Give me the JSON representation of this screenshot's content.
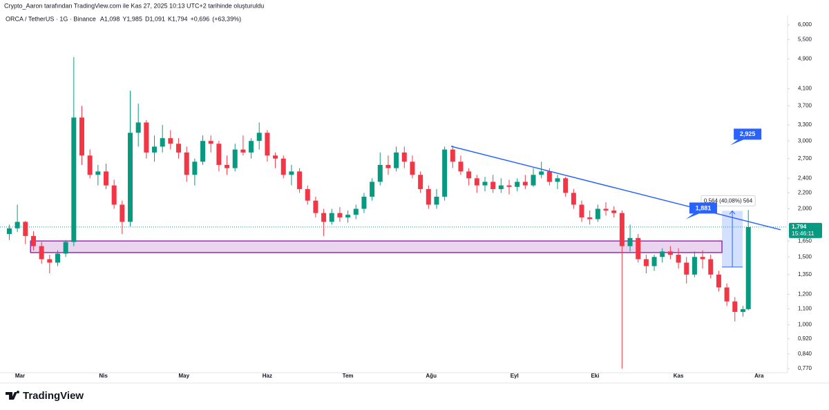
{
  "header": {
    "credit": "Crypto_Aaron tarafından TradingView.com ile Kas 27, 2025 10:13 UTC+2 tarihinde oluşturuldu"
  },
  "chart_data": {
    "type": "candlestick",
    "title": "ORCA / TetherUS · 1G · Binance",
    "legend_values": [
      {
        "value": 1.098,
        "label": "A1,098"
      },
      {
        "value": 1.985,
        "label": "Y1,985"
      },
      {
        "value": 1.091,
        "label": "D1,091"
      },
      {
        "value": 1.794,
        "label": "K1,794"
      },
      {
        "value": 0.696,
        "label": "+0,696"
      },
      {
        "value": 63.39,
        "label": "(+63,39%)"
      }
    ],
    "x": [
      -4,
      -1,
      2,
      5,
      8,
      11,
      14,
      17,
      20,
      23,
      26,
      29,
      32,
      35,
      38,
      41,
      44,
      47,
      50,
      53,
      56,
      59,
      62,
      65,
      68,
      71,
      74,
      77,
      80,
      83,
      86,
      89,
      92,
      95,
      98,
      101,
      104,
      107,
      110,
      113,
      116,
      119,
      122,
      125,
      128,
      131,
      134,
      137,
      140,
      143,
      146,
      149,
      152,
      155,
      158,
      161,
      164,
      167,
      170,
      173,
      176,
      179,
      182,
      185,
      188,
      191,
      194,
      197,
      200,
      203,
      206,
      209,
      212,
      215,
      218,
      221,
      224,
      227,
      230,
      233,
      236,
      239,
      242,
      245,
      248,
      251,
      254,
      257,
      260,
      263,
      266,
      269,
      271
    ],
    "open": [
      1.72,
      1.78,
      1.85,
      1.7,
      1.6,
      1.48,
      1.45,
      1.53,
      1.64,
      3.45,
      2.75,
      2.45,
      2.5,
      2.3,
      2.05,
      1.85,
      3.15,
      3.35,
      2.8,
      2.9,
      3.05,
      2.95,
      2.8,
      2.45,
      2.65,
      3.0,
      2.95,
      2.6,
      2.55,
      2.85,
      2.8,
      3.0,
      3.15,
      2.75,
      2.7,
      2.45,
      2.5,
      2.25,
      2.1,
      1.95,
      1.85,
      1.95,
      1.9,
      1.93,
      2.0,
      2.15,
      2.35,
      2.6,
      2.55,
      2.8,
      2.65,
      2.45,
      2.25,
      2.05,
      2.15,
      2.85,
      2.65,
      2.5,
      2.4,
      2.3,
      2.35,
      2.25,
      2.3,
      2.28,
      2.35,
      2.3,
      2.45,
      2.5,
      2.35,
      2.4,
      2.2,
      2.05,
      1.9,
      1.88,
      2.0,
      1.98,
      1.95,
      1.6,
      1.68,
      1.48,
      1.42,
      1.5,
      1.55,
      1.52,
      1.45,
      1.35,
      1.5,
      1.48,
      1.35,
      1.25,
      1.15,
      1.08,
      1.098
    ],
    "high": [
      1.82,
      2.05,
      1.86,
      1.75,
      1.64,
      1.52,
      1.56,
      1.66,
      4.95,
      3.7,
      2.85,
      2.6,
      2.62,
      2.38,
      2.1,
      4.05,
      3.75,
      3.4,
      3.1,
      3.3,
      3.2,
      3.05,
      2.9,
      2.7,
      3.1,
      3.1,
      3.0,
      2.75,
      2.95,
      3.1,
      3.05,
      3.35,
      3.2,
      2.8,
      2.75,
      2.6,
      2.55,
      2.3,
      2.15,
      2.0,
      2.0,
      2.02,
      1.98,
      2.05,
      2.2,
      2.4,
      2.8,
      2.75,
      2.9,
      2.9,
      2.75,
      2.5,
      2.3,
      2.25,
      2.9,
      2.92,
      2.75,
      2.55,
      2.45,
      2.42,
      2.45,
      2.4,
      2.38,
      2.4,
      2.45,
      2.55,
      2.65,
      2.55,
      2.45,
      2.42,
      2.25,
      2.1,
      1.98,
      2.05,
      2.08,
      2.03,
      1.98,
      1.82,
      1.72,
      1.52,
      1.52,
      1.58,
      1.6,
      1.58,
      1.5,
      1.55,
      1.56,
      1.52,
      1.38,
      1.28,
      1.18,
      1.12,
      1.985
    ],
    "low": [
      1.66,
      1.74,
      1.62,
      1.56,
      1.44,
      1.36,
      1.42,
      1.5,
      1.6,
      2.6,
      2.4,
      2.3,
      2.25,
      2.0,
      1.72,
      1.8,
      2.9,
      2.7,
      2.65,
      2.8,
      2.85,
      2.7,
      2.35,
      2.3,
      2.6,
      2.8,
      2.5,
      2.45,
      2.5,
      2.75,
      2.7,
      2.85,
      2.65,
      2.55,
      2.4,
      2.3,
      2.2,
      2.05,
      1.9,
      1.7,
      1.82,
      1.85,
      1.84,
      1.88,
      1.95,
      2.1,
      2.3,
      2.45,
      2.5,
      2.55,
      2.4,
      2.2,
      2.0,
      2.0,
      2.1,
      2.55,
      2.45,
      2.3,
      2.2,
      2.22,
      2.2,
      2.2,
      2.18,
      2.22,
      2.25,
      2.28,
      2.4,
      2.3,
      2.25,
      2.15,
      2.0,
      1.85,
      1.82,
      1.85,
      1.92,
      1.9,
      0.77,
      1.55,
      1.45,
      1.36,
      1.38,
      1.45,
      1.48,
      1.4,
      1.28,
      1.33,
      1.4,
      1.32,
      1.22,
      1.12,
      1.02,
      1.05,
      1.091
    ],
    "close": [
      1.78,
      1.85,
      1.7,
      1.6,
      1.48,
      1.45,
      1.53,
      1.64,
      3.45,
      2.75,
      2.45,
      2.5,
      2.3,
      2.05,
      1.85,
      3.15,
      3.35,
      2.8,
      2.9,
      3.05,
      2.95,
      2.8,
      2.45,
      2.65,
      3.0,
      2.95,
      2.6,
      2.55,
      2.85,
      2.8,
      3.0,
      3.15,
      2.75,
      2.7,
      2.45,
      2.5,
      2.25,
      2.1,
      1.95,
      1.85,
      1.95,
      1.9,
      1.93,
      2.0,
      2.15,
      2.35,
      2.6,
      2.55,
      2.8,
      2.65,
      2.45,
      2.25,
      2.05,
      2.15,
      2.85,
      2.65,
      2.5,
      2.4,
      2.3,
      2.35,
      2.25,
      2.3,
      2.28,
      2.35,
      2.3,
      2.45,
      2.5,
      2.35,
      2.4,
      2.2,
      2.05,
      1.9,
      1.88,
      2.0,
      1.98,
      1.95,
      1.6,
      1.68,
      1.48,
      1.42,
      1.5,
      1.55,
      1.52,
      1.45,
      1.35,
      1.5,
      1.48,
      1.35,
      1.25,
      1.15,
      1.08,
      1.098,
      1.794
    ],
    "up_color": "#089981",
    "down_color": "#f23645",
    "log_scale": true,
    "grid": false,
    "xlim": [
      -7.46,
      285.6
    ],
    "ylim": [
      0.751,
      6.36
    ],
    "xticks": [
      {
        "value": 0,
        "label": "Mar"
      },
      {
        "value": 31,
        "label": "Nis"
      },
      {
        "value": 61,
        "label": "May"
      },
      {
        "value": 92,
        "label": "Haz"
      },
      {
        "value": 122,
        "label": "Tem"
      },
      {
        "value": 153,
        "label": "Ağu"
      },
      {
        "value": 184,
        "label": "Eyl"
      },
      {
        "value": 214,
        "label": "Eki"
      },
      {
        "value": 245,
        "label": "Kas"
      },
      {
        "value": 275,
        "label": "Ara"
      }
    ],
    "yticks": [
      {
        "value": 6,
        "label": "6,000"
      },
      {
        "value": 5.5,
        "label": "5,500"
      },
      {
        "value": 4.9,
        "label": "4,900"
      },
      {
        "value": 4.1,
        "label": "4,100"
      },
      {
        "value": 3.7,
        "label": "3,700"
      },
      {
        "value": 3.3,
        "label": "3,300"
      },
      {
        "value": 3,
        "label": "3,000"
      },
      {
        "value": 2.7,
        "label": "2,700"
      },
      {
        "value": 2.4,
        "label": "2,400"
      },
      {
        "value": 2.2,
        "label": "2,200"
      },
      {
        "value": 2,
        "label": "2,000"
      },
      {
        "value": 1.65,
        "label": "1,650"
      },
      {
        "value": 1.5,
        "label": "1,500"
      },
      {
        "value": 1.35,
        "label": "1,350"
      },
      {
        "value": 1.2,
        "label": "1,200"
      },
      {
        "value": 1.1,
        "label": "1,100"
      },
      {
        "value": 1,
        "label": "1,000"
      },
      {
        "value": 0.92,
        "label": "0,920"
      },
      {
        "value": 0.84,
        "label": "0,840"
      },
      {
        "value": 0.77,
        "label": "0,770"
      }
    ],
    "trendline": {
      "x": [
        160.4,
        283
      ],
      "y": [
        2.905,
        1.765
      ],
      "color": "#2962ff"
    },
    "zone": {
      "x": [
        3.9,
        261.2
      ],
      "y": [
        1.54,
        1.65
      ],
      "color": "#9c27b0"
    },
    "measure": {
      "x": [
        261.2,
        268.9
      ],
      "y": [
        1.412,
        1.976
      ],
      "label": "0,564 (40,08%) 564",
      "color": "#2962ff"
    },
    "callouts": [
      {
        "x": 264.3,
        "value": 2.925,
        "label": "2,925"
      },
      {
        "x": 247.8,
        "value": 1.881,
        "label": "1,881"
      }
    ],
    "price_tag": {
      "value": 1.794,
      "label": "1,794",
      "countdown": "15:46:11"
    }
  },
  "footer": {
    "logo": "TradingView"
  }
}
